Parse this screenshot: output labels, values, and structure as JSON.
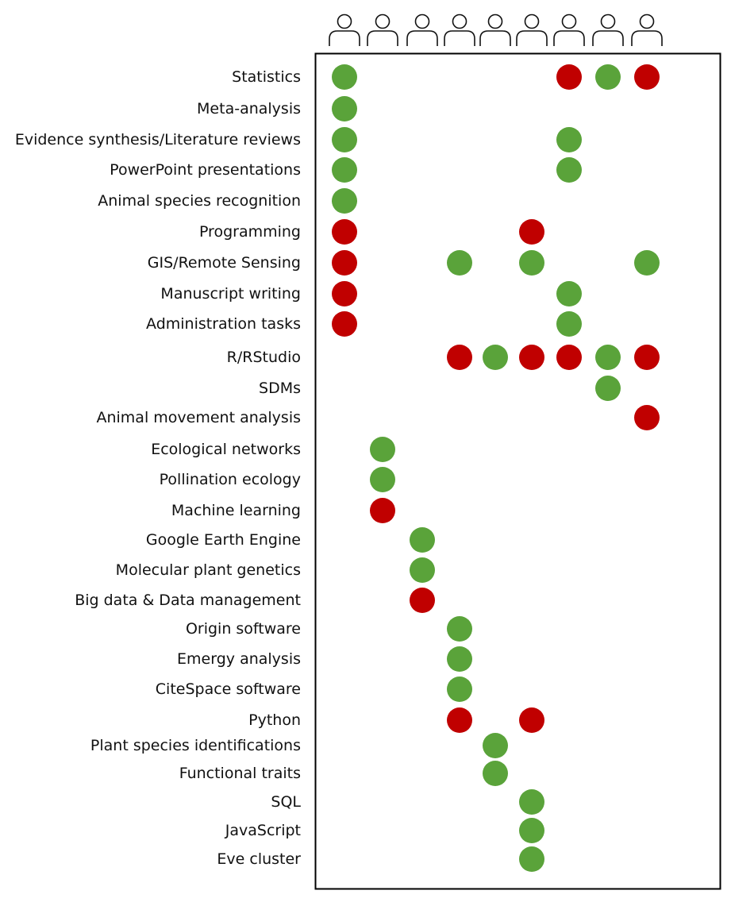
{
  "colors": {
    "have": "#5aa33a",
    "want": "#c00000",
    "frame": "#000000",
    "text": "#111111"
  },
  "people_count": 9,
  "people_icon": "person-outline-icon",
  "skills": [
    {
      "label": "Statistics",
      "marks": [
        {
          "person": 1,
          "status": "have"
        },
        {
          "person": 7,
          "status": "want"
        },
        {
          "person": 8,
          "status": "have"
        },
        {
          "person": 9,
          "status": "want"
        }
      ]
    },
    {
      "label": "Meta-analysis",
      "marks": [
        {
          "person": 1,
          "status": "have"
        }
      ]
    },
    {
      "label": "Evidence synthesis/Literature reviews",
      "marks": [
        {
          "person": 1,
          "status": "have"
        },
        {
          "person": 7,
          "status": "have"
        }
      ]
    },
    {
      "label": "PowerPoint presentations",
      "marks": [
        {
          "person": 1,
          "status": "have"
        },
        {
          "person": 7,
          "status": "have"
        }
      ]
    },
    {
      "label": "Animal species recognition",
      "marks": [
        {
          "person": 1,
          "status": "have"
        }
      ]
    },
    {
      "label": "Programming",
      "marks": [
        {
          "person": 1,
          "status": "want"
        },
        {
          "person": 6,
          "status": "want"
        }
      ]
    },
    {
      "label": "GIS/Remote Sensing",
      "marks": [
        {
          "person": 1,
          "status": "want"
        },
        {
          "person": 4,
          "status": "have"
        },
        {
          "person": 6,
          "status": "have"
        },
        {
          "person": 9,
          "status": "have"
        }
      ]
    },
    {
      "label": "Manuscript writing",
      "marks": [
        {
          "person": 1,
          "status": "want"
        },
        {
          "person": 7,
          "status": "have"
        }
      ]
    },
    {
      "label": "Administration tasks",
      "marks": [
        {
          "person": 1,
          "status": "want"
        },
        {
          "person": 7,
          "status": "have"
        }
      ]
    },
    {
      "label": "R/RStudio",
      "marks": [
        {
          "person": 4,
          "status": "want"
        },
        {
          "person": 5,
          "status": "have"
        },
        {
          "person": 6,
          "status": "want"
        },
        {
          "person": 7,
          "status": "want"
        },
        {
          "person": 8,
          "status": "have"
        },
        {
          "person": 9,
          "status": "want"
        }
      ]
    },
    {
      "label": "SDMs",
      "marks": [
        {
          "person": 8,
          "status": "have"
        }
      ]
    },
    {
      "label": "Animal movement analysis",
      "marks": [
        {
          "person": 9,
          "status": "want"
        }
      ]
    },
    {
      "label": "Ecological networks",
      "marks": [
        {
          "person": 2,
          "status": "have"
        }
      ]
    },
    {
      "label": "Pollination ecology",
      "marks": [
        {
          "person": 2,
          "status": "have"
        }
      ]
    },
    {
      "label": "Machine learning",
      "marks": [
        {
          "person": 2,
          "status": "want"
        }
      ]
    },
    {
      "label": "Google Earth Engine",
      "marks": [
        {
          "person": 3,
          "status": "have"
        }
      ]
    },
    {
      "label": "Molecular plant genetics",
      "marks": [
        {
          "person": 3,
          "status": "have"
        }
      ]
    },
    {
      "label": "Big data & Data management",
      "marks": [
        {
          "person": 3,
          "status": "want"
        }
      ]
    },
    {
      "label": "Origin software",
      "marks": [
        {
          "person": 4,
          "status": "have"
        }
      ]
    },
    {
      "label": "Emergy analysis",
      "marks": [
        {
          "person": 4,
          "status": "have"
        }
      ]
    },
    {
      "label": "CiteSpace software",
      "marks": [
        {
          "person": 4,
          "status": "have"
        }
      ]
    },
    {
      "label": "Python",
      "marks": [
        {
          "person": 4,
          "status": "want"
        },
        {
          "person": 6,
          "status": "want"
        }
      ]
    },
    {
      "label": "Plant species identifications",
      "marks": [
        {
          "person": 5,
          "status": "have"
        }
      ]
    },
    {
      "label": "Functional traits",
      "marks": [
        {
          "person": 5,
          "status": "have"
        }
      ]
    },
    {
      "label": "SQL",
      "marks": [
        {
          "person": 6,
          "status": "have"
        }
      ]
    },
    {
      "label": "JavaScript",
      "marks": [
        {
          "person": 6,
          "status": "have"
        }
      ]
    },
    {
      "label": "Eve cluster",
      "marks": [
        {
          "person": 6,
          "status": "have"
        }
      ]
    }
  ]
}
